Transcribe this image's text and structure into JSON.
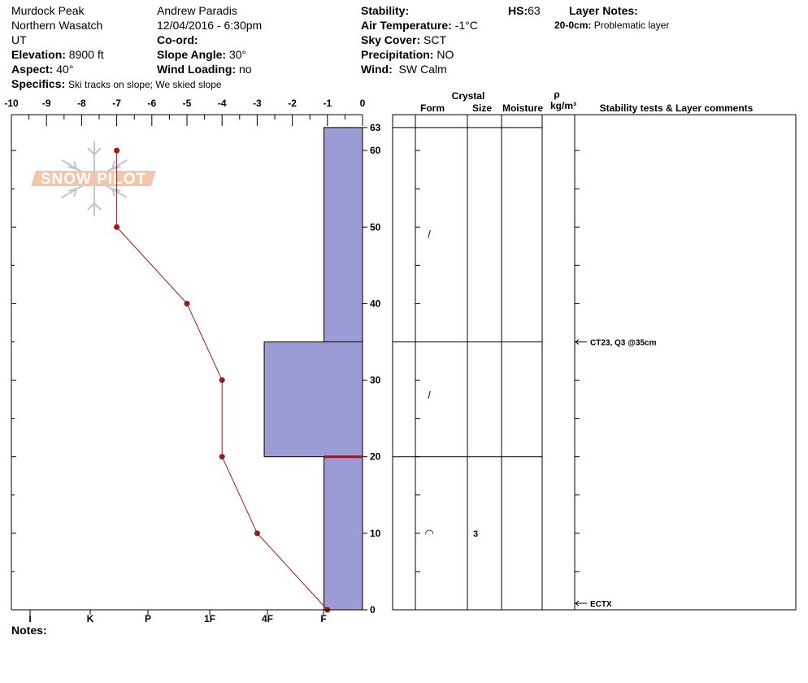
{
  "header": {
    "location": "Murdock Peak",
    "range": "Northern Wasatch",
    "state": "UT",
    "elevation_label": "Elevation:",
    "elevation_value": "8900 ft",
    "aspect_label": "Aspect:",
    "aspect_value": "40°",
    "specifics_label": "Specifics:",
    "specifics_value": "Ski tracks on slope; We skied slope",
    "observer": "Andrew Paradis",
    "datetime": "12/04/2016 - 6:30pm",
    "coord_label": "Co-ord:",
    "slope_label": "Slope Angle:",
    "slope_value": "30°",
    "wind_loading_label": "Wind Loading:",
    "wind_loading_value": "no",
    "stability_label": "Stability:",
    "air_temp_label": "Air Temperature:",
    "air_temp_value": "-1°C",
    "sky_label": "Sky Cover:",
    "sky_value": "SCT",
    "precip_label": "Precipitation:",
    "precip_value": "NO",
    "wind_label": "Wind:",
    "wind_value": "SW Calm",
    "hs_label": "HS:",
    "hs_value": "63",
    "layer_notes_label": "Layer Notes:",
    "layer_note_depth": "20-0cm:",
    "layer_note_text": "Problematic layer"
  },
  "footer": {
    "notes_label": "Notes:"
  },
  "logo": {
    "text": "SNOW PILOT"
  },
  "table_headers": {
    "crystal": "Crystal",
    "form": "Form",
    "size": "Size",
    "moisture": "Moisture",
    "rho": "ρ",
    "density_unit": "kg/m³",
    "stability": "Stability tests & Layer comments"
  },
  "chart_data": {
    "type": "snow_profile",
    "height_range_cm": [
      0,
      63
    ],
    "temperature_axis": {
      "range_c": [
        -10,
        0
      ],
      "tick_labels": [
        "-10",
        "-9",
        "-8",
        "-7",
        "-6",
        "-5",
        "-4",
        "-3",
        "-2",
        "-1",
        "0"
      ]
    },
    "height_tick_labels": [
      "63",
      "60",
      "50",
      "40",
      "30",
      "20",
      "10",
      "0"
    ],
    "hardness_axis": {
      "tick_labels": [
        "I",
        "K",
        "P",
        "1F",
        "4F",
        "F"
      ]
    },
    "temperature_profile": [
      {
        "height": 60,
        "temp": -7
      },
      {
        "height": 50,
        "temp": -7
      },
      {
        "height": 40,
        "temp": -5
      },
      {
        "height": 30,
        "temp": -4
      },
      {
        "height": 20,
        "temp": -4
      },
      {
        "height": 10,
        "temp": -3
      },
      {
        "height": 0,
        "temp": -1
      }
    ],
    "layers": [
      {
        "top": 63,
        "bottom": 35,
        "hardness_temp_equiv": -1.1,
        "form": "/",
        "size": "",
        "moisture": ""
      },
      {
        "top": 35,
        "bottom": 20,
        "hardness_temp_equiv": -2.8,
        "form": "/",
        "size": "",
        "moisture": ""
      },
      {
        "top": 20,
        "bottom": 0,
        "hardness_temp_equiv": -1.1,
        "form": "◠",
        "size": "3",
        "moisture": ""
      }
    ],
    "problem_layer_height": 20,
    "stability_tests": [
      {
        "label": "CT23, Q3 @35cm",
        "height": 35
      },
      {
        "label": "ECTX",
        "height": 0
      }
    ],
    "colors": {
      "layer_fill": "#9b9bd6",
      "profile_line": "#a01818",
      "problem_line": "#b01010"
    }
  }
}
